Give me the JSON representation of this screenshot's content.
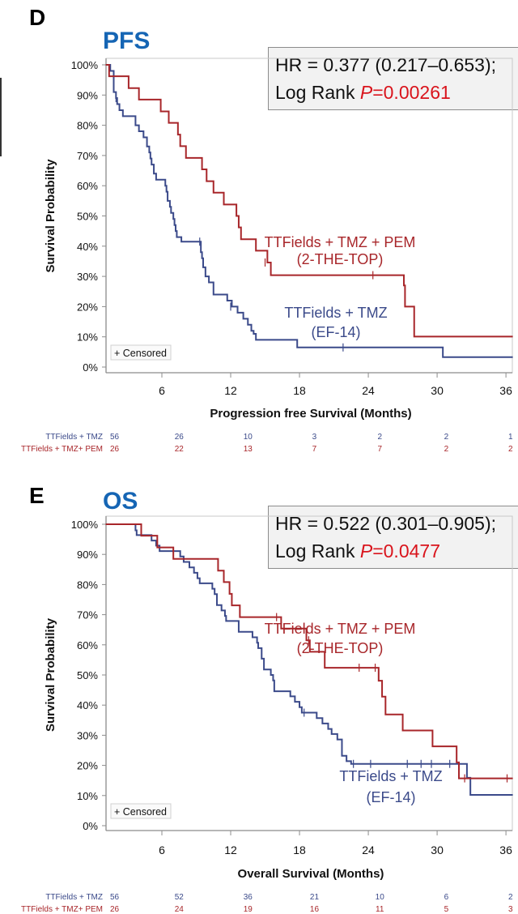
{
  "figures": [
    {
      "panel_letter": "D",
      "panel_title": "PFS",
      "stats": {
        "hr_line": "HR = 0.377 (0.217–0.653);",
        "logrank_prefix": "Log Rank ",
        "p_symbol": "P",
        "p_value": "=0.00261"
      }
    },
    {
      "panel_letter": "E",
      "panel_title": "OS",
      "stats": {
        "hr_line": "HR = 0.522 (0.301–0.905);",
        "logrank_prefix": "Log Rank ",
        "p_symbol": "P",
        "p_value": "=0.0477"
      }
    }
  ],
  "colors": {
    "control": "#3b4a8a",
    "treatment": "#a8262a",
    "title": "#1565b4",
    "p_value": "#d9141c",
    "axis": "#8c8c8c"
  },
  "chart_data": [
    {
      "type": "line",
      "subtype": "kaplan-meier",
      "title": "PFS",
      "xlabel": "Progression free Survival (Months)",
      "ylabel": "Survival Probability",
      "xlim": [
        1.1,
        36.6
      ],
      "ylim": [
        0,
        100
      ],
      "xticks": [
        6,
        12,
        18,
        24,
        30,
        36
      ],
      "yticks": [
        0,
        10,
        20,
        30,
        40,
        50,
        60,
        70,
        80,
        90,
        100
      ],
      "ytick_labels": [
        "0%",
        "10%",
        "20%",
        "30%",
        "40%",
        "50%",
        "60%",
        "70%",
        "80%",
        "90%",
        "100%"
      ],
      "legend": "+ Censored",
      "legend_position": "bottom-left",
      "series": [
        {
          "name": "TTFields + TMZ",
          "label_lines": [
            "TTFields + TMZ",
            "(EF-14)"
          ],
          "color_key": "control",
          "steps": [
            [
              1.1,
              100
            ],
            [
              1.5,
              98
            ],
            [
              1.8,
              91
            ],
            [
              2.0,
              89
            ],
            [
              2.1,
              87
            ],
            [
              2.3,
              85
            ],
            [
              2.6,
              83
            ],
            [
              3.7,
              80
            ],
            [
              4.0,
              78
            ],
            [
              4.4,
              76
            ],
            [
              4.7,
              73
            ],
            [
              4.9,
              71
            ],
            [
              5.0,
              69
            ],
            [
              5.1,
              67
            ],
            [
              5.3,
              64
            ],
            [
              5.5,
              62
            ],
            [
              6.0,
              62
            ],
            [
              6.3,
              60
            ],
            [
              6.4,
              58
            ],
            [
              6.5,
              55
            ],
            [
              6.7,
              53
            ],
            [
              6.8,
              51
            ],
            [
              7.0,
              49
            ],
            [
              7.1,
              47
            ],
            [
              7.2,
              45
            ],
            [
              7.3,
              43
            ],
            [
              7.7,
              41.5
            ],
            [
              9.3,
              41.5
            ],
            [
              9.4,
              38
            ],
            [
              9.5,
              36
            ],
            [
              9.6,
              33
            ],
            [
              9.8,
              30
            ],
            [
              10.1,
              28
            ],
            [
              10.5,
              24
            ],
            [
              11.5,
              24
            ],
            [
              11.7,
              22
            ],
            [
              12.1,
              20
            ],
            [
              12.4,
              20
            ],
            [
              12.6,
              18
            ],
            [
              13.1,
              16
            ],
            [
              13.5,
              14
            ],
            [
              13.8,
              12
            ],
            [
              14.0,
              11
            ],
            [
              14.2,
              9
            ],
            [
              17.8,
              9
            ],
            [
              17.8,
              6.5
            ],
            [
              30.5,
              6.5
            ],
            [
              30.5,
              3.3
            ],
            [
              36.6,
              3.3
            ]
          ],
          "censors": [
            [
              2.0,
              89
            ],
            [
              9.3,
              41.5
            ],
            [
              12.0,
              20
            ],
            [
              21.8,
              6.5
            ]
          ],
          "at_risk": [
            56,
            26,
            10,
            3,
            2,
            2,
            1
          ]
        },
        {
          "name": "TTFields + TMZ+ PEM",
          "label_lines": [
            "TTFields + TMZ + PEM",
            "(2-THE-TOP)"
          ],
          "color_key": "treatment",
          "steps": [
            [
              1.1,
              100
            ],
            [
              1.4,
              96.2
            ],
            [
              3.1,
              92.3
            ],
            [
              4.0,
              88.5
            ],
            [
              5.9,
              84.6
            ],
            [
              6.6,
              80.8
            ],
            [
              7.4,
              76.9
            ],
            [
              7.6,
              73.1
            ],
            [
              8.1,
              69.2
            ],
            [
              9.5,
              65.4
            ],
            [
              9.9,
              61.5
            ],
            [
              10.5,
              57.7
            ],
            [
              11.4,
              53.8
            ],
            [
              12.5,
              50
            ],
            [
              12.7,
              46.2
            ],
            [
              12.9,
              42.3
            ],
            [
              14.2,
              38.5
            ],
            [
              15.2,
              34.6
            ],
            [
              15.5,
              30.4
            ],
            [
              27.0,
              30.4
            ],
            [
              27.1,
              27
            ],
            [
              27.2,
              27
            ],
            [
              27.2,
              20
            ],
            [
              28.0,
              20
            ],
            [
              28.0,
              10.1
            ],
            [
              36.6,
              10.1
            ]
          ],
          "censors": [
            [
              15.0,
              34.6
            ],
            [
              24.4,
              30.4
            ]
          ],
          "at_risk": [
            26,
            22,
            13,
            7,
            7,
            2,
            2
          ]
        }
      ],
      "at_risk_times": [
        1.5,
        7.5,
        13.5,
        19.3,
        25.0,
        30.8,
        36.4
      ]
    },
    {
      "type": "line",
      "subtype": "kaplan-meier",
      "title": "OS",
      "xlabel": "Overall Survival (Months)",
      "ylabel": "Survival Probability",
      "xlim": [
        1.1,
        36.6
      ],
      "ylim": [
        0,
        100
      ],
      "xticks": [
        6,
        12,
        18,
        24,
        30,
        36
      ],
      "yticks": [
        0,
        10,
        20,
        30,
        40,
        50,
        60,
        70,
        80,
        90,
        100
      ],
      "ytick_labels": [
        "0%",
        "10%",
        "20%",
        "30%",
        "40%",
        "50%",
        "60%",
        "70%",
        "80%",
        "90%",
        "100%"
      ],
      "legend": "+ Censored",
      "legend_position": "bottom-left",
      "series": [
        {
          "name": "TTFields + TMZ",
          "label_lines": [
            "TTFields + TMZ",
            "(EF-14)"
          ],
          "color_key": "control",
          "steps": [
            [
              1.1,
              100
            ],
            [
              3.7,
              100
            ],
            [
              3.7,
              98
            ],
            [
              3.8,
              96.4
            ],
            [
              5.0,
              96.4
            ],
            [
              5.1,
              94.6
            ],
            [
              5.5,
              92.9
            ],
            [
              5.8,
              91.1
            ],
            [
              7.2,
              91.1
            ],
            [
              7.6,
              89.3
            ],
            [
              7.9,
              87.5
            ],
            [
              8.4,
              85.7
            ],
            [
              8.8,
              83.9
            ],
            [
              9.1,
              82.1
            ],
            [
              9.3,
              80.4
            ],
            [
              10.1,
              80.4
            ],
            [
              10.4,
              78.6
            ],
            [
              10.6,
              76.8
            ],
            [
              10.8,
              73.2
            ],
            [
              11.2,
              71.4
            ],
            [
              11.5,
              69.6
            ],
            [
              11.6,
              67.9
            ],
            [
              12.6,
              67.9
            ],
            [
              12.7,
              64.3
            ],
            [
              13.9,
              64.3
            ],
            [
              13.9,
              62.5
            ],
            [
              14.3,
              60.7
            ],
            [
              14.4,
              58.9
            ],
            [
              14.7,
              55.4
            ],
            [
              14.9,
              51.8
            ],
            [
              15.5,
              50
            ],
            [
              15.7,
              48.2
            ],
            [
              15.8,
              44.6
            ],
            [
              16.9,
              44.6
            ],
            [
              17.2,
              42.9
            ],
            [
              17.6,
              41.1
            ],
            [
              18.0,
              39.3
            ],
            [
              18.2,
              37.5
            ],
            [
              19.3,
              37.5
            ],
            [
              19.5,
              35.7
            ],
            [
              20.0,
              33.9
            ],
            [
              20.5,
              32.1
            ],
            [
              20.8,
              30.4
            ],
            [
              21.3,
              28.6
            ],
            [
              21.7,
              25
            ],
            [
              21.7,
              23.2
            ],
            [
              22.1,
              21.4
            ],
            [
              22.5,
              20.5
            ],
            [
              32.3,
              20.5
            ],
            [
              32.6,
              15.9
            ],
            [
              32.9,
              10.2
            ],
            [
              36.6,
              10.2
            ]
          ],
          "censors": [
            [
              18.4,
              37.5
            ],
            [
              22.7,
              20.5
            ],
            [
              24.2,
              20.5
            ],
            [
              27.4,
              20.5
            ],
            [
              28.6,
              20.5
            ],
            [
              29.5,
              20.5
            ],
            [
              31.1,
              20.5
            ]
          ],
          "at_risk": [
            56,
            52,
            36,
            21,
            10,
            6,
            2
          ]
        },
        {
          "name": "TTFields + TMZ+ PEM",
          "label_lines": [
            "TTFields + TMZ + PEM",
            "(2-THE-TOP)"
          ],
          "color_key": "treatment",
          "steps": [
            [
              1.1,
              100
            ],
            [
              4.2,
              100
            ],
            [
              4.2,
              96.2
            ],
            [
              5.6,
              96.2
            ],
            [
              5.6,
              92.3
            ],
            [
              7.0,
              92.3
            ],
            [
              7.0,
              88.5
            ],
            [
              10.9,
              88.5
            ],
            [
              10.9,
              84.6
            ],
            [
              11.4,
              84.6
            ],
            [
              11.4,
              80.8
            ],
            [
              11.9,
              80.8
            ],
            [
              11.9,
              76.9
            ],
            [
              12.1,
              76.9
            ],
            [
              12.1,
              73.1
            ],
            [
              12.8,
              73.1
            ],
            [
              12.8,
              69.2
            ],
            [
              16.4,
              69.2
            ],
            [
              16.4,
              65.4
            ],
            [
              18.6,
              65.4
            ],
            [
              18.6,
              61.5
            ],
            [
              18.9,
              61.5
            ],
            [
              18.9,
              57.7
            ],
            [
              20.2,
              57.7
            ],
            [
              20.2,
              52.4
            ],
            [
              24.9,
              52.4
            ],
            [
              24.9,
              48.1
            ],
            [
              25.2,
              48.1
            ],
            [
              25.2,
              42.8
            ],
            [
              25.5,
              42.8
            ],
            [
              25.5,
              36.9
            ],
            [
              27.0,
              36.9
            ],
            [
              27.0,
              31.6
            ],
            [
              29.6,
              31.6
            ],
            [
              29.6,
              26.3
            ],
            [
              31.7,
              26.3
            ],
            [
              31.7,
              21.0
            ],
            [
              31.9,
              21.0
            ],
            [
              31.9,
              15.7
            ],
            [
              36.6,
              15.7
            ]
          ],
          "censors": [
            [
              16.0,
              69.2
            ],
            [
              18.8,
              61.5
            ],
            [
              23.2,
              52.4
            ],
            [
              24.6,
              52.4
            ],
            [
              32.4,
              15.7
            ],
            [
              36.1,
              15.7
            ]
          ],
          "at_risk": [
            26,
            24,
            19,
            16,
            11,
            5,
            3
          ]
        }
      ],
      "at_risk_times": [
        1.5,
        7.5,
        13.5,
        19.3,
        25.0,
        30.8,
        36.4
      ]
    }
  ]
}
